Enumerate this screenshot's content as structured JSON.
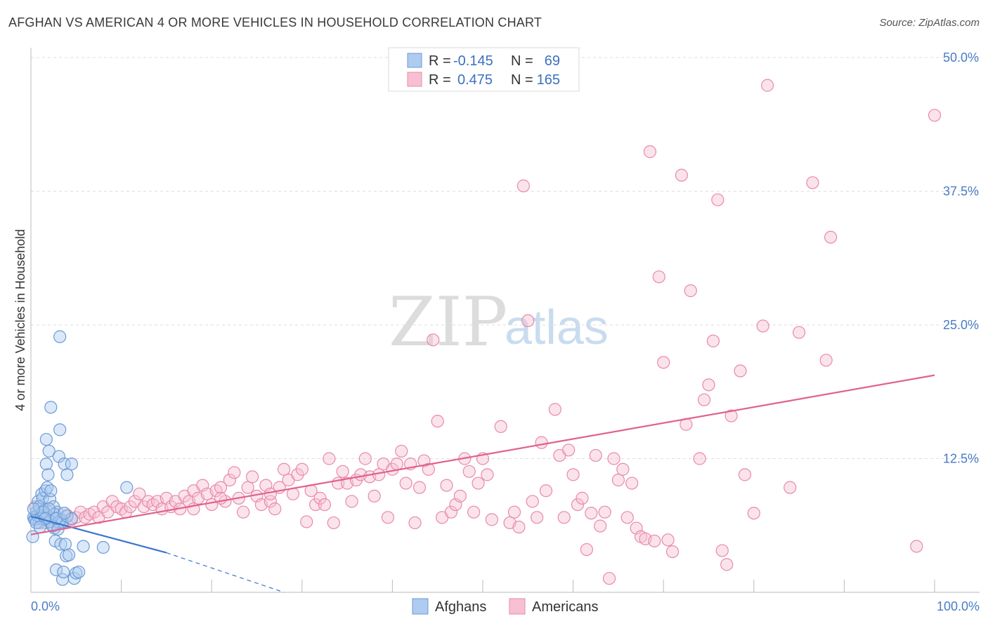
{
  "title": "AFGHAN VS AMERICAN 4 OR MORE VEHICLES IN HOUSEHOLD CORRELATION CHART",
  "source": "Source: ZipAtlas.com",
  "watermark": {
    "zip": "ZIP",
    "atlas": "atlas"
  },
  "legend": {
    "rows": [
      {
        "r_label": "R =",
        "r_value": "-0.145",
        "n_label": "N =",
        "n_value": "69",
        "color": "#aecbf0",
        "stroke": "#6c9ad6"
      },
      {
        "r_label": "R =",
        "r_value": "0.475",
        "n_label": "N =",
        "n_value": "165",
        "color": "#f7c0d2",
        "stroke": "#e88aa8"
      }
    ]
  },
  "bottom_legend": [
    "Afghans",
    "Americans"
  ],
  "chart_data": {
    "type": "scatter",
    "title": "AFGHAN VS AMERICAN 4 OR MORE VEHICLES IN HOUSEHOLD CORRELATION CHART",
    "xlabel": "",
    "ylabel": "4 or more Vehicles in Household",
    "xlim": [
      0,
      100
    ],
    "ylim": [
      0,
      50
    ],
    "x_tick_labels": [
      "0.0%",
      "100.0%"
    ],
    "y_ticks": [
      12.5,
      25.0,
      37.5,
      50.0
    ],
    "y_tick_labels": [
      "12.5%",
      "25.0%",
      "37.5%",
      "50.0%"
    ],
    "grid": true,
    "colors": {
      "afghans": "#6c9ad6",
      "afghans_fill": "#aecbf0",
      "americans": "#e88aa8",
      "americans_fill": "#f7c0d2",
      "afghans_line": "#3a74d0",
      "americans_line": "#e0628e"
    },
    "series": [
      {
        "name": "Afghans",
        "points": [
          [
            0.2,
            5.2
          ],
          [
            0.3,
            7.0
          ],
          [
            0.5,
            6.8
          ],
          [
            0.6,
            7.5
          ],
          [
            0.8,
            8.5
          ],
          [
            0.9,
            6.5
          ],
          [
            1.0,
            7.8
          ],
          [
            1.2,
            9.2
          ],
          [
            1.3,
            8.8
          ],
          [
            1.4,
            7.2
          ],
          [
            1.5,
            6.8
          ],
          [
            1.6,
            9.5
          ],
          [
            1.7,
            12.0
          ],
          [
            1.7,
            14.3
          ],
          [
            1.8,
            9.8
          ],
          [
            1.9,
            11.0
          ],
          [
            2.0,
            13.2
          ],
          [
            2.1,
            8.7
          ],
          [
            2.2,
            9.5
          ],
          [
            2.2,
            17.3
          ],
          [
            2.3,
            6.3
          ],
          [
            2.4,
            7.0
          ],
          [
            2.5,
            8.0
          ],
          [
            2.6,
            6.0
          ],
          [
            2.7,
            4.8
          ],
          [
            2.8,
            2.1
          ],
          [
            2.9,
            7.5
          ],
          [
            3.0,
            6.5
          ],
          [
            3.1,
            12.7
          ],
          [
            3.2,
            15.2
          ],
          [
            3.3,
            4.5
          ],
          [
            3.4,
            6.8
          ],
          [
            3.5,
            1.2
          ],
          [
            3.6,
            1.9
          ],
          [
            3.7,
            12.0
          ],
          [
            3.8,
            4.5
          ],
          [
            3.9,
            3.4
          ],
          [
            4.0,
            11.0
          ],
          [
            4.2,
            3.5
          ],
          [
            4.5,
            12.0
          ],
          [
            4.8,
            1.3
          ],
          [
            5.0,
            1.8
          ],
          [
            5.3,
            1.9
          ],
          [
            5.8,
            4.3
          ],
          [
            8.0,
            4.2
          ],
          [
            10.6,
            9.8
          ],
          [
            3.2,
            23.9
          ],
          [
            0.4,
            6.8
          ],
          [
            0.7,
            7.2
          ],
          [
            1.1,
            6.9
          ],
          [
            1.4,
            7.6
          ],
          [
            1.8,
            7.0
          ],
          [
            2.1,
            6.6
          ],
          [
            2.6,
            7.3
          ],
          [
            3.1,
            6.6
          ],
          [
            3.5,
            6.6
          ],
          [
            4.0,
            7.1
          ],
          [
            0.9,
            8.0
          ],
          [
            1.3,
            7.5
          ],
          [
            0.6,
            6.5
          ],
          [
            2.0,
            7.8
          ],
          [
            2.4,
            6.2
          ],
          [
            1.6,
            6.9
          ],
          [
            0.3,
            7.8
          ],
          [
            3.0,
            5.9
          ],
          [
            2.8,
            6.9
          ],
          [
            1.0,
            6.1
          ],
          [
            4.5,
            6.9
          ],
          [
            3.7,
            7.4
          ]
        ],
        "trend": {
          "x1": 0,
          "y1": 7.1,
          "x2": 15,
          "y2": 3.7,
          "dash_to_x": 28,
          "dash_to_y": 0.0
        }
      },
      {
        "name": "Americans",
        "points": [
          [
            0.5,
            8.0
          ],
          [
            1.0,
            7.0
          ],
          [
            1.5,
            6.5
          ],
          [
            2.0,
            7.5
          ],
          [
            2.5,
            6.8
          ],
          [
            3.0,
            7.0
          ],
          [
            3.5,
            6.5
          ],
          [
            4.0,
            7.2
          ],
          [
            4.5,
            6.8
          ],
          [
            5.0,
            7.0
          ],
          [
            5.5,
            7.5
          ],
          [
            6.0,
            7.0
          ],
          [
            6.5,
            7.3
          ],
          [
            7.0,
            7.5
          ],
          [
            7.5,
            7.0
          ],
          [
            8.0,
            8.0
          ],
          [
            8.5,
            7.5
          ],
          [
            9.0,
            8.5
          ],
          [
            9.5,
            8.0
          ],
          [
            10.0,
            7.8
          ],
          [
            10.5,
            7.5
          ],
          [
            11.0,
            8.0
          ],
          [
            11.5,
            8.5
          ],
          [
            12.0,
            9.2
          ],
          [
            12.5,
            8.0
          ],
          [
            13.0,
            8.5
          ],
          [
            13.5,
            8.2
          ],
          [
            14.0,
            8.5
          ],
          [
            14.5,
            7.8
          ],
          [
            15.0,
            8.8
          ],
          [
            15.5,
            8.0
          ],
          [
            16.0,
            8.5
          ],
          [
            16.5,
            7.8
          ],
          [
            17.0,
            9.0
          ],
          [
            17.5,
            8.5
          ],
          [
            18.0,
            9.5
          ],
          [
            18.5,
            8.8
          ],
          [
            19.0,
            10.0
          ],
          [
            19.5,
            9.2
          ],
          [
            20.0,
            8.2
          ],
          [
            20.5,
            9.5
          ],
          [
            21.0,
            9.8
          ],
          [
            21.5,
            8.5
          ],
          [
            22.0,
            10.5
          ],
          [
            22.5,
            11.2
          ],
          [
            23.0,
            8.8
          ],
          [
            23.5,
            7.5
          ],
          [
            24.0,
            9.8
          ],
          [
            24.5,
            10.8
          ],
          [
            25.0,
            9.0
          ],
          [
            25.5,
            8.2
          ],
          [
            26.0,
            10.0
          ],
          [
            26.5,
            8.5
          ],
          [
            27.0,
            7.8
          ],
          [
            27.5,
            9.8
          ],
          [
            28.0,
            11.5
          ],
          [
            28.5,
            10.5
          ],
          [
            29.0,
            9.2
          ],
          [
            29.5,
            11.0
          ],
          [
            30.0,
            11.5
          ],
          [
            30.5,
            6.6
          ],
          [
            31.0,
            9.5
          ],
          [
            31.5,
            8.2
          ],
          [
            32.0,
            8.8
          ],
          [
            32.5,
            8.2
          ],
          [
            33.0,
            12.5
          ],
          [
            33.5,
            6.5
          ],
          [
            34.0,
            10.2
          ],
          [
            34.5,
            11.3
          ],
          [
            35.0,
            10.2
          ],
          [
            35.5,
            8.5
          ],
          [
            36.0,
            10.5
          ],
          [
            36.5,
            11.0
          ],
          [
            37.0,
            12.5
          ],
          [
            37.5,
            10.8
          ],
          [
            38.0,
            9.0
          ],
          [
            38.5,
            11.0
          ],
          [
            39.0,
            12.0
          ],
          [
            39.5,
            7.0
          ],
          [
            40.0,
            11.5
          ],
          [
            40.5,
            12.0
          ],
          [
            41.0,
            13.2
          ],
          [
            41.5,
            10.2
          ],
          [
            42.0,
            12.0
          ],
          [
            42.5,
            6.5
          ],
          [
            43.0,
            9.8
          ],
          [
            43.5,
            12.3
          ],
          [
            44.0,
            11.5
          ],
          [
            44.5,
            23.6
          ],
          [
            45.0,
            16.0
          ],
          [
            45.5,
            7.0
          ],
          [
            46.0,
            10.0
          ],
          [
            46.5,
            7.5
          ],
          [
            47.0,
            8.2
          ],
          [
            47.5,
            9.0
          ],
          [
            48.0,
            12.5
          ],
          [
            48.5,
            11.3
          ],
          [
            49.0,
            7.5
          ],
          [
            49.5,
            10.2
          ],
          [
            50.0,
            12.5
          ],
          [
            50.5,
            11.0
          ],
          [
            51.0,
            6.8
          ],
          [
            52.0,
            15.5
          ],
          [
            53.0,
            6.5
          ],
          [
            53.5,
            7.5
          ],
          [
            54.0,
            6.1
          ],
          [
            54.5,
            38.0
          ],
          [
            55.0,
            25.4
          ],
          [
            55.5,
            8.5
          ],
          [
            56.0,
            7.0
          ],
          [
            56.5,
            14.0
          ],
          [
            57.0,
            9.5
          ],
          [
            58.0,
            17.1
          ],
          [
            58.5,
            12.8
          ],
          [
            59.0,
            7.0
          ],
          [
            59.5,
            13.3
          ],
          [
            60.0,
            11.0
          ],
          [
            60.5,
            8.2
          ],
          [
            61.0,
            8.8
          ],
          [
            61.5,
            4.0
          ],
          [
            62.0,
            7.4
          ],
          [
            62.5,
            12.8
          ],
          [
            63.0,
            6.2
          ],
          [
            63.5,
            7.5
          ],
          [
            64.0,
            1.3
          ],
          [
            64.5,
            12.5
          ],
          [
            65.0,
            10.5
          ],
          [
            65.5,
            11.5
          ],
          [
            66.0,
            7.0
          ],
          [
            66.5,
            10.2
          ],
          [
            67.0,
            6.0
          ],
          [
            67.5,
            5.2
          ],
          [
            68.0,
            5.0
          ],
          [
            68.5,
            41.2
          ],
          [
            69.0,
            4.8
          ],
          [
            69.5,
            29.5
          ],
          [
            70.0,
            21.5
          ],
          [
            70.5,
            4.9
          ],
          [
            71.0,
            3.8
          ],
          [
            72.0,
            39.0
          ],
          [
            72.5,
            15.7
          ],
          [
            73.0,
            28.2
          ],
          [
            74.0,
            12.5
          ],
          [
            74.5,
            18.0
          ],
          [
            75.0,
            19.4
          ],
          [
            75.5,
            23.5
          ],
          [
            76.0,
            36.7
          ],
          [
            76.5,
            3.9
          ],
          [
            77.0,
            2.6
          ],
          [
            77.5,
            16.5
          ],
          [
            78.5,
            20.7
          ],
          [
            79.0,
            11.0
          ],
          [
            80.0,
            7.4
          ],
          [
            81.0,
            24.9
          ],
          [
            81.5,
            47.4
          ],
          [
            84.0,
            9.8
          ],
          [
            85.0,
            24.3
          ],
          [
            86.5,
            38.3
          ],
          [
            88.0,
            21.7
          ],
          [
            88.5,
            33.2
          ],
          [
            98.0,
            4.3
          ],
          [
            100.0,
            44.6
          ],
          [
            21.0,
            8.8
          ],
          [
            26.5,
            9.2
          ],
          [
            18.0,
            7.8
          ]
        ],
        "trend": {
          "x1": 0,
          "y1": 5.4,
          "x2": 100,
          "y2": 20.3
        }
      }
    ]
  }
}
